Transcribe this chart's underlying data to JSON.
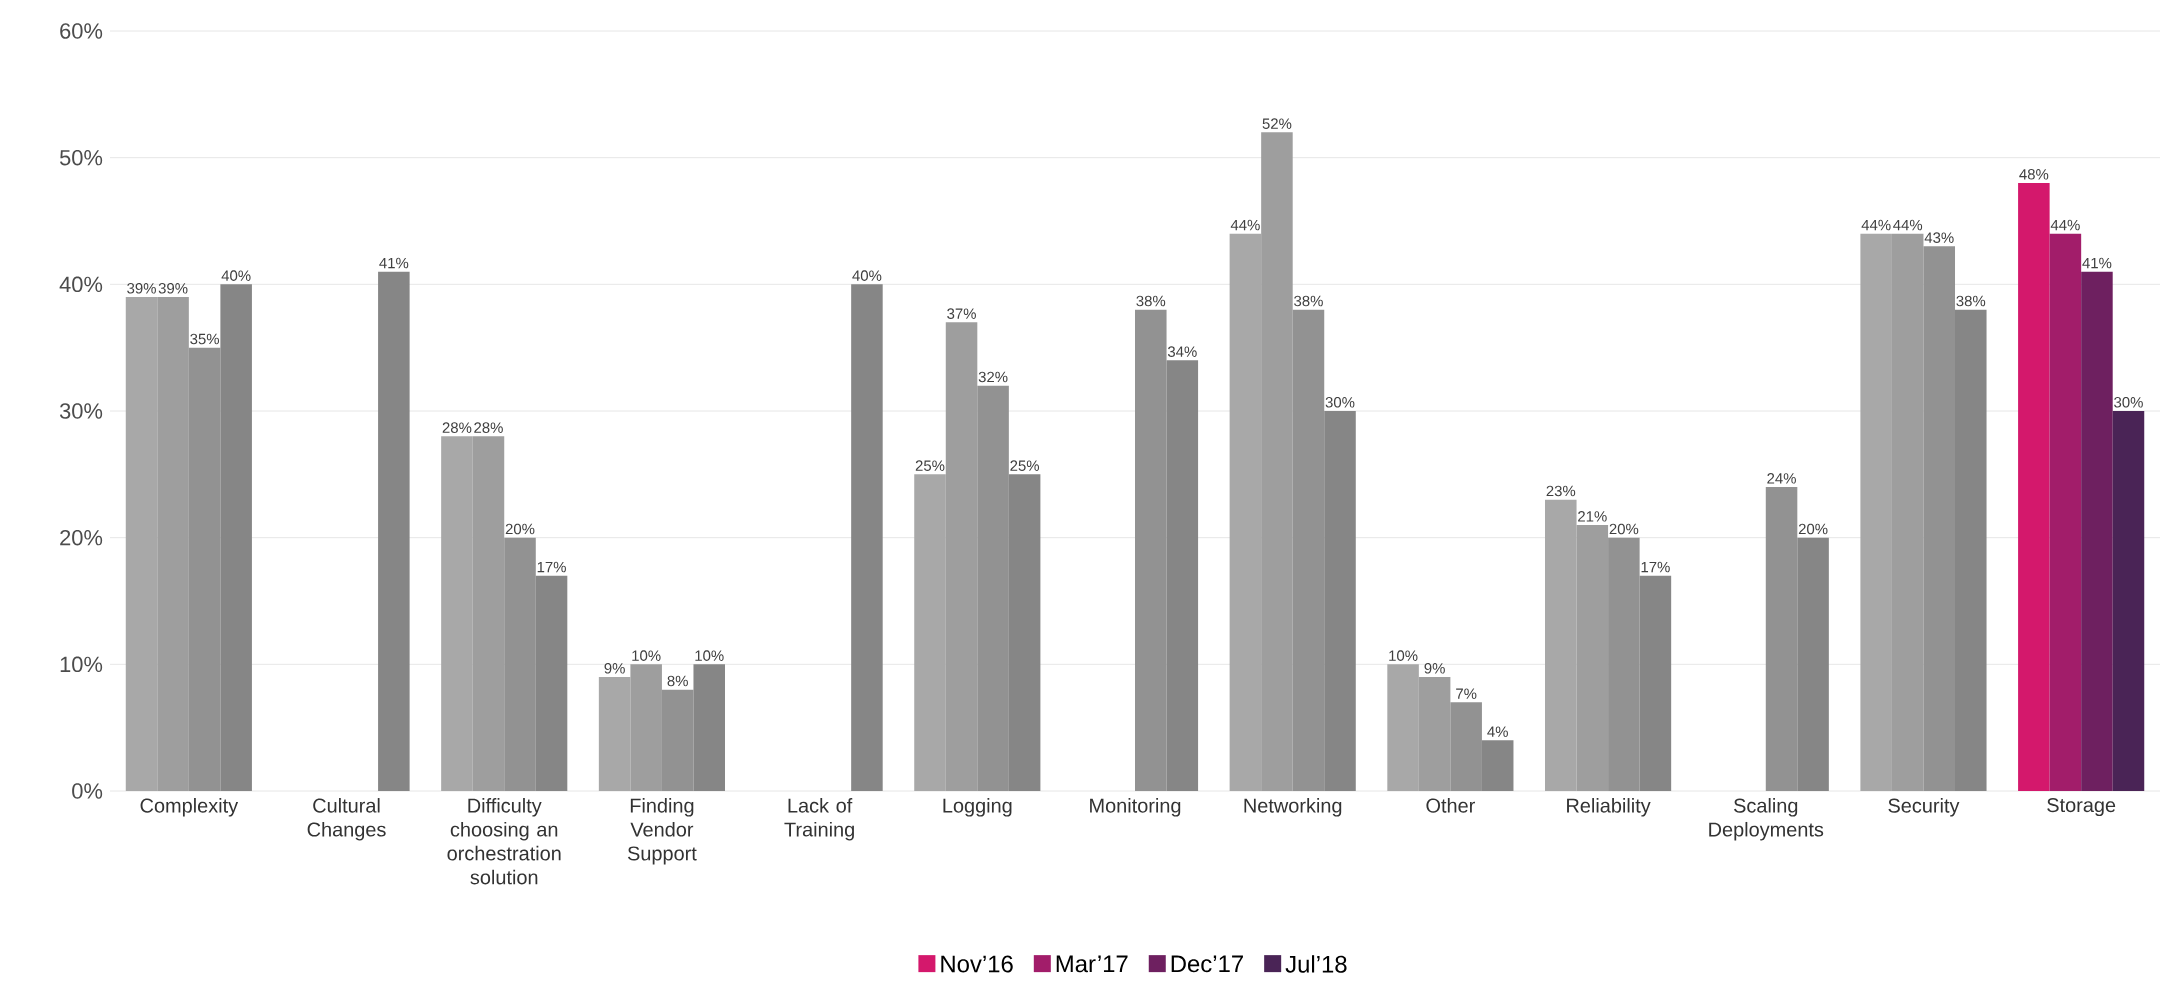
{
  "chart_data": {
    "type": "bar",
    "categories": [
      "Complexity",
      "Cultural Changes",
      "Difficulty choosing an orchestration solution",
      "Finding Vendor Support",
      "Lack of Training",
      "Logging",
      "Monitoring",
      "Networking",
      "Other",
      "Reliability",
      "Scaling Deployments",
      "Security",
      "Storage"
    ],
    "series": [
      {
        "name": "Nov’16",
        "color": "#d4186c",
        "values": [
          39,
          null,
          28,
          9,
          null,
          25,
          null,
          44,
          10,
          23,
          null,
          44,
          48
        ],
        "value_labels": [
          "39%",
          null,
          "28%",
          "9%",
          null,
          "25%",
          null,
          "44%",
          "10%",
          "23%",
          null,
          "44%",
          "48%"
        ],
        "colors": [
          "#a8a8a8",
          "#a8a8a8",
          "#a8a8a8",
          "#a8a8a8",
          "#a8a8a8",
          "#a8a8a8",
          "#a8a8a8",
          "#a8a8a8",
          "#a8a8a8",
          "#a8a8a8",
          "#a8a8a8",
          "#a8a8a8",
          "#d4186c"
        ]
      },
      {
        "name": "Mar’17",
        "color": "#a21d6a",
        "values": [
          39,
          null,
          28,
          10,
          null,
          37,
          null,
          52,
          9,
          21,
          null,
          44,
          44
        ],
        "value_labels": [
          "39%",
          null,
          "28%",
          "10%",
          null,
          "37%",
          null,
          "52%",
          "9%",
          "21%",
          null,
          "44%",
          "44%"
        ],
        "colors": [
          "#9e9e9e",
          "#9e9e9e",
          "#9e9e9e",
          "#9e9e9e",
          "#9e9e9e",
          "#9e9e9e",
          "#9e9e9e",
          "#9e9e9e",
          "#9e9e9e",
          "#9e9e9e",
          "#9e9e9e",
          "#9e9e9e",
          "#a21d6a"
        ]
      },
      {
        "name": "Dec’17",
        "color": "#6e2060",
        "values": [
          35,
          null,
          20,
          8,
          null,
          32,
          38,
          38,
          7,
          20,
          24,
          43,
          41
        ],
        "value_labels": [
          "35%",
          null,
          "20%",
          "8%",
          null,
          "32%",
          "38%",
          "38%",
          "7%",
          "20%",
          "24%",
          "43%",
          "41%"
        ],
        "colors": [
          "#929292",
          "#929292",
          "#929292",
          "#929292",
          "#929292",
          "#929292",
          "#929292",
          "#929292",
          "#929292",
          "#929292",
          "#929292",
          "#929292",
          "#6e2060"
        ]
      },
      {
        "name": "Jul’18",
        "color": "#4a2456",
        "values": [
          40,
          41,
          17,
          10,
          40,
          25,
          34,
          30,
          4,
          17,
          20,
          38,
          30
        ],
        "value_labels": [
          "40%",
          "41%",
          "17%",
          "10%",
          "40%",
          "25%",
          "34%",
          "30%",
          "4%",
          "17%",
          "20%",
          "38%",
          "30%"
        ],
        "colors": [
          "#868686",
          "#868686",
          "#868686",
          "#868686",
          "#868686",
          "#868686",
          "#868686",
          "#868686",
          "#868686",
          "#868686",
          "#868686",
          "#868686",
          "#4a2456"
        ]
      }
    ],
    "ylim": [
      0,
      60
    ],
    "yticks": [
      {
        "value": 0,
        "label": "0%"
      },
      {
        "value": 10,
        "label": "10%"
      },
      {
        "value": 20,
        "label": "20%"
      },
      {
        "value": 30,
        "label": "30%"
      },
      {
        "value": 40,
        "label": "40%"
      },
      {
        "value": 50,
        "label": "50%"
      },
      {
        "value": 60,
        "label": "60%"
      }
    ],
    "grid": "y",
    "legend": "bottom"
  }
}
